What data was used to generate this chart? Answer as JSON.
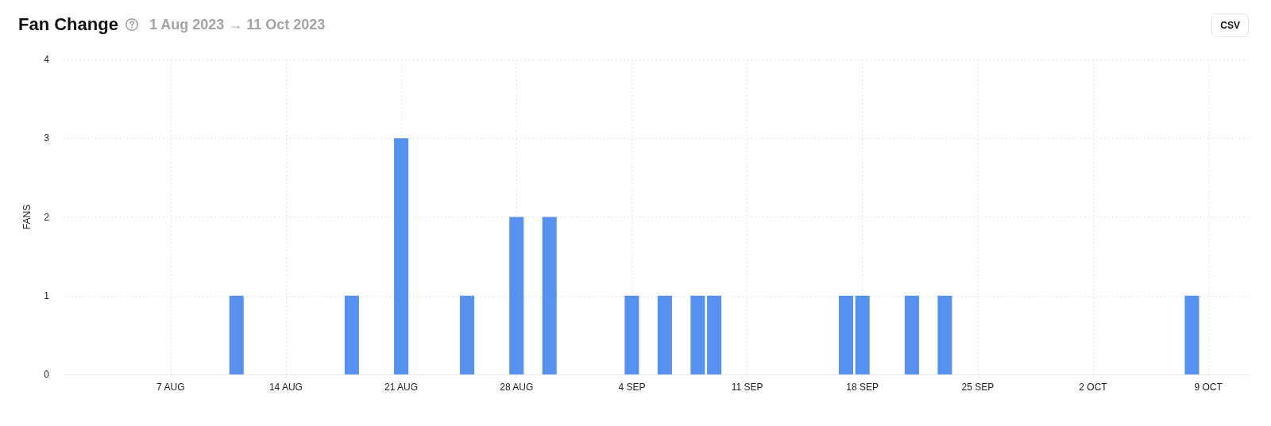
{
  "chart_data": {
    "type": "bar",
    "title": "Fan Change",
    "subtitle": "1 Aug 2023 → 11 Oct 2023",
    "ylabel": "FANS",
    "annotations": [
      "CSV"
    ],
    "x": [
      "2023-08-11",
      "2023-08-18",
      "2023-08-21",
      "2023-08-25",
      "2023-08-28",
      "2023-08-30",
      "2023-09-04",
      "2023-09-06",
      "2023-09-08",
      "2023-09-09",
      "2023-09-17",
      "2023-09-18",
      "2023-09-21",
      "2023-09-23",
      "2023-10-08"
    ],
    "values": [
      1,
      1,
      3,
      1,
      2,
      2,
      1,
      1,
      1,
      1,
      1,
      1,
      1,
      1,
      1
    ],
    "color": "#5791f0",
    "xlim": [
      "2023-07-31T12:00",
      "2023-10-11T12:00"
    ],
    "xticks": [
      {
        "value": "2023-08-07",
        "label": "7 AUG"
      },
      {
        "value": "2023-08-14",
        "label": "14 AUG"
      },
      {
        "value": "2023-08-21",
        "label": "21 AUG"
      },
      {
        "value": "2023-08-28",
        "label": "28 AUG"
      },
      {
        "value": "2023-09-04",
        "label": "4 SEP"
      },
      {
        "value": "2023-09-11",
        "label": "11 SEP"
      },
      {
        "value": "2023-09-18",
        "label": "18 SEP"
      },
      {
        "value": "2023-09-25",
        "label": "25 SEP"
      },
      {
        "value": "2023-10-02",
        "label": "2 OCT"
      },
      {
        "value": "2023-10-09",
        "label": "9 OCT"
      }
    ],
    "ylim": [
      0,
      4
    ],
    "yticks": [
      0,
      1,
      2,
      3,
      4
    ],
    "grid": true
  }
}
